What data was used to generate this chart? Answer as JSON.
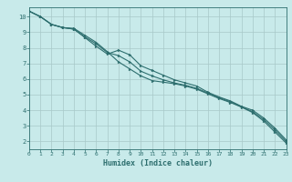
{
  "xlabel": "Humidex (Indice chaleur)",
  "bg_color": "#c8eaea",
  "line_color": "#2d6e6e",
  "grid_color_major": "#a8c8c8",
  "grid_color_minor": "#b8d8d8",
  "xmin": 0,
  "xmax": 23,
  "ymin": 1.5,
  "ymax": 10.6,
  "series1": [
    [
      0,
      10.35
    ],
    [
      1,
      10.0
    ],
    [
      2,
      9.5
    ],
    [
      3,
      9.3
    ],
    [
      4,
      9.25
    ],
    [
      5,
      8.8
    ],
    [
      6,
      8.35
    ],
    [
      7,
      7.75
    ],
    [
      8,
      7.1
    ],
    [
      9,
      6.65
    ],
    [
      10,
      6.2
    ],
    [
      11,
      5.9
    ],
    [
      12,
      5.8
    ],
    [
      13,
      5.7
    ],
    [
      14,
      5.55
    ],
    [
      15,
      5.35
    ],
    [
      16,
      5.05
    ],
    [
      17,
      4.75
    ],
    [
      18,
      4.5
    ],
    [
      19,
      4.2
    ],
    [
      20,
      3.85
    ],
    [
      21,
      3.3
    ],
    [
      22,
      2.6
    ],
    [
      23,
      1.9
    ]
  ],
  "series2": [
    [
      0,
      10.35
    ],
    [
      1,
      10.0
    ],
    [
      2,
      9.5
    ],
    [
      3,
      9.3
    ],
    [
      4,
      9.2
    ],
    [
      5,
      8.65
    ],
    [
      6,
      8.1
    ],
    [
      7,
      7.6
    ],
    [
      8,
      7.85
    ],
    [
      9,
      7.55
    ],
    [
      10,
      6.85
    ],
    [
      11,
      6.55
    ],
    [
      12,
      6.25
    ],
    [
      13,
      5.95
    ],
    [
      14,
      5.75
    ],
    [
      15,
      5.55
    ],
    [
      16,
      5.15
    ],
    [
      17,
      4.85
    ],
    [
      18,
      4.6
    ],
    [
      19,
      4.25
    ],
    [
      20,
      4.0
    ],
    [
      21,
      3.5
    ],
    [
      22,
      2.85
    ],
    [
      23,
      2.1
    ]
  ],
  "series3": [
    [
      0,
      10.35
    ],
    [
      1,
      10.0
    ],
    [
      2,
      9.5
    ],
    [
      3,
      9.3
    ],
    [
      4,
      9.2
    ],
    [
      5,
      8.7
    ],
    [
      6,
      8.25
    ],
    [
      7,
      7.7
    ],
    [
      8,
      7.5
    ],
    [
      9,
      7.1
    ],
    [
      10,
      6.5
    ],
    [
      11,
      6.2
    ],
    [
      12,
      5.95
    ],
    [
      13,
      5.75
    ],
    [
      14,
      5.6
    ],
    [
      15,
      5.4
    ],
    [
      16,
      5.1
    ],
    [
      17,
      4.8
    ],
    [
      18,
      4.55
    ],
    [
      19,
      4.22
    ],
    [
      20,
      3.9
    ],
    [
      21,
      3.4
    ],
    [
      22,
      2.73
    ],
    [
      23,
      2.0
    ]
  ],
  "yticks": [
    2,
    3,
    4,
    5,
    6,
    7,
    8,
    9,
    10
  ],
  "xticks": [
    0,
    1,
    2,
    3,
    4,
    5,
    6,
    7,
    8,
    9,
    10,
    11,
    12,
    13,
    14,
    15,
    16,
    17,
    18,
    19,
    20,
    21,
    22,
    23
  ]
}
